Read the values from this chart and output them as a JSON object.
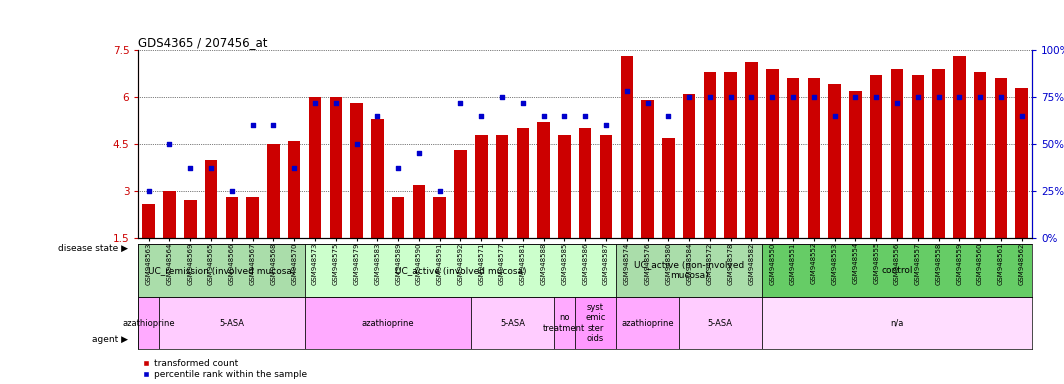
{
  "title": "GDS4365 / 207456_at",
  "samples": [
    "GSM948563",
    "GSM948564",
    "GSM948569",
    "GSM948565",
    "GSM948566",
    "GSM948567",
    "GSM948568",
    "GSM948570",
    "GSM948573",
    "GSM948575",
    "GSM948579",
    "GSM948583",
    "GSM948589",
    "GSM948590",
    "GSM948591",
    "GSM948592",
    "GSM948571",
    "GSM948577",
    "GSM948581",
    "GSM948588",
    "GSM948585",
    "GSM948586",
    "GSM948587",
    "GSM948574",
    "GSM948576",
    "GSM948580",
    "GSM948584",
    "GSM948572",
    "GSM948578",
    "GSM948582",
    "GSM948550",
    "GSM948551",
    "GSM948552",
    "GSM948553",
    "GSM948554",
    "GSM948555",
    "GSM948556",
    "GSM948557",
    "GSM948558",
    "GSM948559",
    "GSM948560",
    "GSM948561",
    "GSM948562"
  ],
  "bar_values": [
    2.6,
    3.0,
    2.7,
    4.0,
    2.8,
    2.8,
    4.5,
    4.6,
    6.0,
    6.0,
    5.8,
    5.3,
    2.8,
    3.2,
    2.8,
    4.3,
    4.8,
    4.8,
    5.0,
    5.2,
    4.8,
    5.0,
    4.8,
    7.3,
    5.9,
    4.7,
    6.1,
    6.8,
    6.8,
    7.1,
    6.9,
    6.6,
    6.6,
    6.4,
    6.2,
    6.7,
    6.9,
    6.7,
    6.9,
    7.3,
    6.8,
    6.6,
    6.3
  ],
  "dot_values_pct": [
    25,
    50,
    37,
    37,
    25,
    60,
    60,
    37,
    72,
    72,
    50,
    65,
    37,
    45,
    25,
    72,
    65,
    75,
    72,
    65,
    65,
    65,
    60,
    78,
    72,
    65,
    75,
    75,
    75,
    75,
    75,
    75,
    75,
    65,
    75,
    75,
    72,
    75,
    75,
    75,
    75,
    75,
    65
  ],
  "ylim": [
    1.5,
    7.5
  ],
  "yticks": [
    1.5,
    3.0,
    4.5,
    6.0,
    7.5
  ],
  "ytick_labels": [
    "1.5",
    "3",
    "4.5",
    "6",
    "7.5"
  ],
  "right_ytick_pcts": [
    0,
    25,
    50,
    75,
    100
  ],
  "right_ytick_labels": [
    "0%",
    "25%",
    "50%",
    "75%",
    "100%"
  ],
  "bar_color": "#cc0000",
  "dot_color": "#0000cc",
  "disease_state_groups": [
    {
      "label": "UC_remission (involved mucosa)",
      "start": 0,
      "end": 7,
      "color": "#aaddaa"
    },
    {
      "label": "UC_active (involved mucosa)",
      "start": 8,
      "end": 22,
      "color": "#ccffcc"
    },
    {
      "label": "UC_active (non-involved\nmucosa)",
      "start": 23,
      "end": 29,
      "color": "#aaddaa"
    },
    {
      "label": "control",
      "start": 30,
      "end": 42,
      "color": "#66cc66"
    }
  ],
  "agent_groups": [
    {
      "label": "azathioprine",
      "start": 0,
      "end": 0,
      "color": "#ffaaff"
    },
    {
      "label": "5-ASA",
      "start": 1,
      "end": 7,
      "color": "#ffccff"
    },
    {
      "label": "azathioprine",
      "start": 8,
      "end": 15,
      "color": "#ffaaff"
    },
    {
      "label": "5-ASA",
      "start": 16,
      "end": 19,
      "color": "#ffccff"
    },
    {
      "label": "no\ntreatment",
      "start": 20,
      "end": 20,
      "color": "#ffaaff"
    },
    {
      "label": "syst\nemic\nster\noids",
      "start": 21,
      "end": 22,
      "color": "#ff99ff"
    },
    {
      "label": "azathioprine",
      "start": 23,
      "end": 25,
      "color": "#ffaaff"
    },
    {
      "label": "5-ASA",
      "start": 26,
      "end": 29,
      "color": "#ffccff"
    },
    {
      "label": "n/a",
      "start": 30,
      "end": 42,
      "color": "#ffddff"
    }
  ],
  "bg_color": "#f0f0f0",
  "plot_bg": "#ffffff"
}
